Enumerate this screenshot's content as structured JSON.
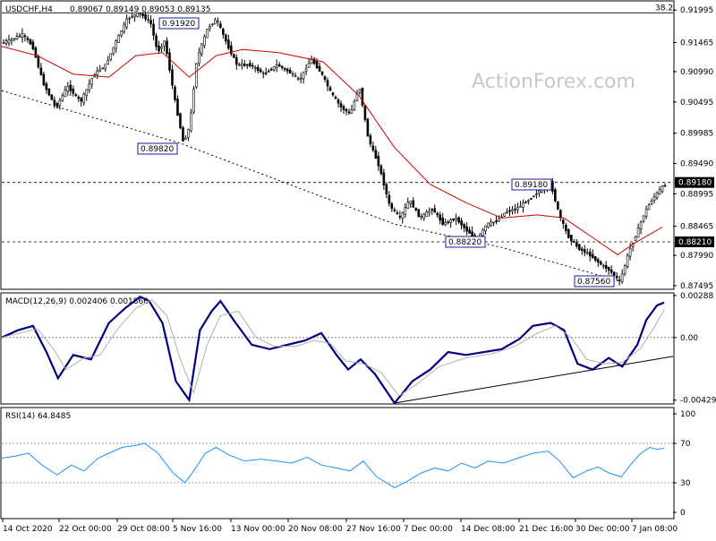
{
  "window": {
    "symbol_header": "USDCHF,H4",
    "ohlc_text": "0.89067 0.89149 0.89053 0.89135",
    "watermark": "ActionForex.com"
  },
  "chart_data": [
    {
      "type": "candlestick",
      "name": "USDCHF,H4",
      "price_axis": {
        "ylim": [
          0.8745,
          0.9213
        ],
        "tick_labels": [
          "0.91995",
          "0.91465",
          "0.90990",
          "0.90495",
          "0.89985",
          "0.89490",
          "0.88995",
          "0.88465",
          "0.87990",
          "0.87495"
        ],
        "tick_values": [
          0.91995,
          0.91465,
          0.9099,
          0.90495,
          0.89985,
          0.8949,
          0.88995,
          0.88465,
          0.8799,
          0.87495
        ]
      },
      "time_axis": {
        "labels": [
          "14 Oct 2020",
          "22 Oct 00:00",
          "29 Oct 08:00",
          "5 Nov 16:00",
          "13 Nov 00:00",
          "20 Nov 08:00",
          "27 Nov 16:00",
          "7 Dec 00:00",
          "14 Dec 08:00",
          "21 Dec 16:00",
          "30 Dec 00:00",
          "7 Jan 08:00"
        ]
      },
      "fib_level": {
        "label": "38.2",
        "value": 0.9195
      },
      "horizontal_lines": [
        {
          "label": "0.89180",
          "value": 0.8918,
          "style": "dashed"
        },
        {
          "label": "0.88210",
          "value": 0.8821,
          "style": "dashed"
        }
      ],
      "right_axis_markers": [
        {
          "label": "0.89180",
          "value": 0.8918,
          "color": "#000000"
        },
        {
          "label": "0.88210",
          "value": 0.8821,
          "color": "#000000"
        }
      ],
      "annotations": [
        {
          "label": "0.91920",
          "value": 0.9192,
          "at": "29 Oct 08:00"
        },
        {
          "label": "0.89820",
          "value": 0.8982,
          "at": "5 Nov 16:00"
        },
        {
          "label": "0.89180",
          "value": 0.8918,
          "at": "21 Dec 16:00"
        },
        {
          "label": "0.88220",
          "value": 0.8822,
          "at": "14 Dec 08:00"
        },
        {
          "label": "0.87560",
          "value": 0.8756,
          "at": "30 Dec 00:00"
        }
      ],
      "moving_average_color": "#cc0000",
      "price_path": [
        [
          0,
          0.9145
        ],
        [
          10,
          0.915
        ],
        [
          25,
          0.916
        ],
        [
          36,
          0.914
        ],
        [
          48,
          0.908
        ],
        [
          62,
          0.904
        ],
        [
          75,
          0.9075
        ],
        [
          90,
          0.905
        ],
        [
          105,
          0.9095
        ],
        [
          118,
          0.911
        ],
        [
          130,
          0.915
        ],
        [
          142,
          0.9185
        ],
        [
          155,
          0.9195
        ],
        [
          168,
          0.918
        ],
        [
          176,
          0.913
        ],
        [
          184,
          0.915
        ],
        [
          195,
          0.9055
        ],
        [
          205,
          0.8982
        ],
        [
          212,
          0.901
        ],
        [
          220,
          0.912
        ],
        [
          232,
          0.917
        ],
        [
          242,
          0.9185
        ],
        [
          255,
          0.914
        ],
        [
          265,
          0.911
        ],
        [
          280,
          0.911
        ],
        [
          295,
          0.9095
        ],
        [
          310,
          0.911
        ],
        [
          322,
          0.91
        ],
        [
          335,
          0.9085
        ],
        [
          348,
          0.912
        ],
        [
          360,
          0.9095
        ],
        [
          370,
          0.9065
        ],
        [
          382,
          0.904
        ],
        [
          392,
          0.903
        ],
        [
          402,
          0.9075
        ],
        [
          412,
          0.899
        ],
        [
          424,
          0.8945
        ],
        [
          436,
          0.888
        ],
        [
          448,
          0.886
        ],
        [
          458,
          0.889
        ],
        [
          470,
          0.886
        ],
        [
          484,
          0.8875
        ],
        [
          496,
          0.885
        ],
        [
          510,
          0.886
        ],
        [
          522,
          0.884
        ],
        [
          534,
          0.8825
        ],
        [
          545,
          0.885
        ],
        [
          556,
          0.8855
        ],
        [
          566,
          0.887
        ],
        [
          578,
          0.8875
        ],
        [
          592,
          0.889
        ],
        [
          604,
          0.8905
        ],
        [
          616,
          0.8918
        ],
        [
          626,
          0.8865
        ],
        [
          636,
          0.883
        ],
        [
          648,
          0.881
        ],
        [
          660,
          0.88
        ],
        [
          672,
          0.8785
        ],
        [
          682,
          0.8775
        ],
        [
          694,
          0.8756
        ],
        [
          704,
          0.8805
        ],
        [
          714,
          0.884
        ],
        [
          722,
          0.887
        ],
        [
          730,
          0.889
        ],
        [
          738,
          0.8905
        ],
        [
          744,
          0.8914
        ]
      ],
      "ma_path": [
        [
          0,
          0.914
        ],
        [
          40,
          0.9125
        ],
        [
          80,
          0.9095
        ],
        [
          120,
          0.909
        ],
        [
          150,
          0.9125
        ],
        [
          180,
          0.913
        ],
        [
          210,
          0.909
        ],
        [
          240,
          0.9125
        ],
        [
          270,
          0.9135
        ],
        [
          310,
          0.913
        ],
        [
          360,
          0.9115
        ],
        [
          400,
          0.906
        ],
        [
          440,
          0.8975
        ],
        [
          480,
          0.8915
        ],
        [
          520,
          0.8885
        ],
        [
          560,
          0.886
        ],
        [
          600,
          0.8865
        ],
        [
          630,
          0.886
        ],
        [
          660,
          0.883
        ],
        [
          690,
          0.88
        ],
        [
          710,
          0.882
        ],
        [
          740,
          0.8845
        ]
      ],
      "trendline_path": [
        [
          0,
          0.9068
        ],
        [
          200,
          0.8982
        ],
        [
          440,
          0.885
        ],
        [
          560,
          0.8812
        ],
        [
          694,
          0.8756
        ]
      ]
    },
    {
      "type": "line",
      "name": "MACD(12,26,9)",
      "header_text": "MACD(12,26,9) 0.002406 0.001866",
      "ylim": [
        -0.0045,
        0.003
      ],
      "tick_labels": [
        "0.00288",
        "0.00",
        "-0.004298"
      ],
      "tick_values": [
        0.00288,
        0.0,
        -0.004298
      ],
      "zero_line": 0.0,
      "series": [
        {
          "name": "MACD",
          "color": "#000080",
          "points": [
            [
              0,
              0.0
            ],
            [
              18,
              0.0005
            ],
            [
              35,
              0.0008
            ],
            [
              50,
              -0.001
            ],
            [
              63,
              -0.0028
            ],
            [
              80,
              -0.0012
            ],
            [
              100,
              -0.0015
            ],
            [
              120,
              0.001
            ],
            [
              138,
              0.002
            ],
            [
              155,
              0.0028
            ],
            [
              165,
              0.0025
            ],
            [
              180,
              0.001
            ],
            [
              195,
              -0.003
            ],
            [
              210,
              -0.0043
            ],
            [
              222,
              0.0005
            ],
            [
              235,
              0.0018
            ],
            [
              245,
              0.0025
            ],
            [
              262,
              0.001
            ],
            [
              280,
              -0.0005
            ],
            [
              300,
              -0.0008
            ],
            [
              320,
              -0.0005
            ],
            [
              340,
              -0.0002
            ],
            [
              358,
              0.0003
            ],
            [
              375,
              -0.0012
            ],
            [
              388,
              -0.0022
            ],
            [
              402,
              -0.0015
            ],
            [
              418,
              -0.0025
            ],
            [
              440,
              -0.0045
            ],
            [
              460,
              -0.003
            ],
            [
              480,
              -0.0022
            ],
            [
              500,
              -0.001
            ],
            [
              520,
              -0.0012
            ],
            [
              540,
              -0.001
            ],
            [
              560,
              -0.0008
            ],
            [
              580,
              -0.0001
            ],
            [
              595,
              0.0008
            ],
            [
              615,
              0.001
            ],
            [
              630,
              0.0005
            ],
            [
              645,
              -0.0018
            ],
            [
              662,
              -0.0022
            ],
            [
              680,
              -0.0014
            ],
            [
              695,
              -0.002
            ],
            [
              712,
              -0.0005
            ],
            [
              722,
              0.0012
            ],
            [
              734,
              0.0022
            ],
            [
              742,
              0.0024
            ]
          ]
        },
        {
          "name": "Signal",
          "color": "#b0b0b0",
          "points": [
            [
              0,
              0.0
            ],
            [
              20,
              0.0003
            ],
            [
              40,
              0.0006
            ],
            [
              58,
              -0.0008
            ],
            [
              72,
              -0.0022
            ],
            [
              92,
              -0.0014
            ],
            [
              110,
              -0.0012
            ],
            [
              130,
              0.0006
            ],
            [
              150,
              0.002
            ],
            [
              168,
              0.0026
            ],
            [
              185,
              0.0015
            ],
            [
              200,
              -0.0015
            ],
            [
              215,
              -0.0038
            ],
            [
              230,
              -0.0005
            ],
            [
              245,
              0.0015
            ],
            [
              265,
              0.0018
            ],
            [
              285,
              0.0
            ],
            [
              305,
              -0.0006
            ],
            [
              330,
              -0.0006
            ],
            [
              350,
              -0.0002
            ],
            [
              368,
              -0.0004
            ],
            [
              385,
              -0.0016
            ],
            [
              405,
              -0.0018
            ],
            [
              425,
              -0.0024
            ],
            [
              445,
              -0.004
            ],
            [
              465,
              -0.0032
            ],
            [
              490,
              -0.002
            ],
            [
              520,
              -0.0014
            ],
            [
              550,
              -0.0011
            ],
            [
              575,
              -0.0006
            ],
            [
              600,
              0.0003
            ],
            [
              620,
              0.0008
            ],
            [
              638,
              0.0
            ],
            [
              655,
              -0.0015
            ],
            [
              675,
              -0.0018
            ],
            [
              695,
              -0.0017
            ],
            [
              715,
              -0.0008
            ],
            [
              730,
              0.0006
            ],
            [
              742,
              0.0019
            ]
          ]
        },
        {
          "name": "Trendline",
          "color": "#000000",
          "points": [
            [
              440,
              -0.0045
            ],
            [
              752,
              -0.0013
            ]
          ]
        }
      ]
    },
    {
      "type": "line",
      "name": "RSI(14)",
      "header_text": "RSI(14) 64.8485",
      "ylim": [
        0,
        100
      ],
      "tick_labels": [
        "100",
        "70",
        "30",
        "0"
      ],
      "tick_values": [
        100,
        70,
        30,
        0
      ],
      "levels": [
        70,
        30
      ],
      "series": [
        {
          "name": "RSI",
          "color": "#1e90ff",
          "points": [
            [
              0,
              55
            ],
            [
              15,
              57
            ],
            [
              30,
              60
            ],
            [
              45,
              48
            ],
            [
              62,
              38
            ],
            [
              78,
              48
            ],
            [
              92,
              42
            ],
            [
              108,
              55
            ],
            [
              120,
              60
            ],
            [
              135,
              66
            ],
            [
              150,
              68
            ],
            [
              160,
              70
            ],
            [
              175,
              60
            ],
            [
              192,
              40
            ],
            [
              205,
              30
            ],
            [
              215,
              42
            ],
            [
              228,
              60
            ],
            [
              240,
              66
            ],
            [
              255,
              58
            ],
            [
              272,
              52
            ],
            [
              290,
              54
            ],
            [
              308,
              52
            ],
            [
              325,
              50
            ],
            [
              342,
              56
            ],
            [
              358,
              48
            ],
            [
              375,
              45
            ],
            [
              390,
              42
            ],
            [
              405,
              52
            ],
            [
              420,
              36
            ],
            [
              440,
              25
            ],
            [
              455,
              32
            ],
            [
              470,
              40
            ],
            [
              485,
              45
            ],
            [
              500,
              42
            ],
            [
              515,
              50
            ],
            [
              530,
              45
            ],
            [
              545,
              52
            ],
            [
              562,
              50
            ],
            [
              578,
              55
            ],
            [
              595,
              60
            ],
            [
              612,
              62
            ],
            [
              625,
              52
            ],
            [
              640,
              35
            ],
            [
              655,
              42
            ],
            [
              668,
              46
            ],
            [
              680,
              40
            ],
            [
              694,
              36
            ],
            [
              706,
              50
            ],
            [
              716,
              60
            ],
            [
              726,
              66
            ],
            [
              734,
              64
            ],
            [
              742,
              65
            ]
          ]
        }
      ]
    }
  ]
}
